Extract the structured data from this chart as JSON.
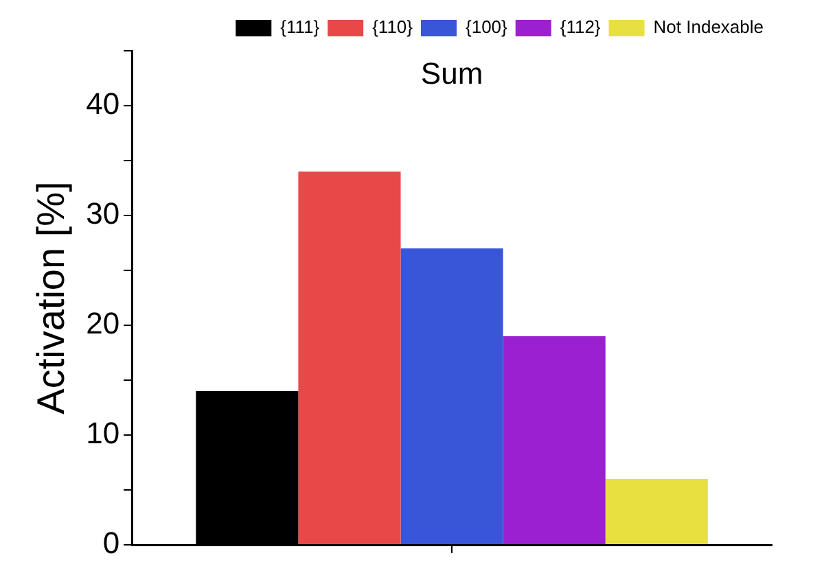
{
  "chart_data": {
    "type": "bar",
    "title": "Sum",
    "ylabel": "Activation [%]",
    "categories": [
      null
    ],
    "series": [
      {
        "name": "{111}",
        "color": "#000000",
        "values": [
          14
        ]
      },
      {
        "name": "{110}",
        "color": "#e84848",
        "values": [
          34
        ]
      },
      {
        "name": "{100}",
        "color": "#3a56d8",
        "values": [
          27
        ]
      },
      {
        "name": "{112}",
        "color": "#9a20d0",
        "values": [
          19
        ]
      },
      {
        "name": "Not Indexable",
        "color": "#e8e040",
        "values": [
          6
        ]
      }
    ],
    "ylim": [
      0,
      45
    ],
    "yticks": [
      0,
      {
        "value": 5,
        "label": null
      },
      10,
      {
        "value": 15,
        "label": null
      },
      20,
      {
        "value": 25,
        "label": null
      },
      30,
      {
        "value": 35,
        "label": null
      },
      40,
      {
        "value": 45,
        "label": null
      }
    ],
    "grid": false,
    "legend": "top",
    "tick_labels": "y"
  }
}
